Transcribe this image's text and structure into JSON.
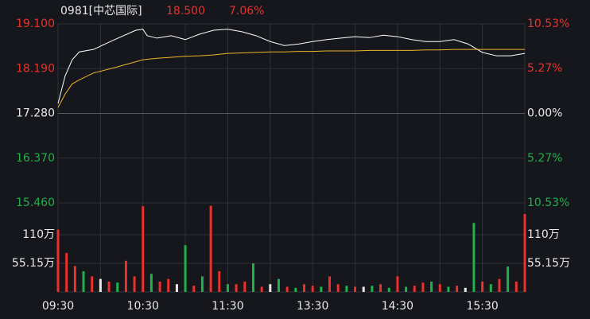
{
  "chart_data": {
    "type": "intraday",
    "title": "0981[中芯国际]",
    "last_price": "18.500",
    "change_pct": "7.06%",
    "x": [
      0,
      5,
      10,
      15,
      25,
      40,
      55,
      60,
      63,
      70,
      80,
      90,
      100,
      110,
      120,
      130,
      140,
      150,
      160,
      170,
      180,
      190,
      200,
      210,
      220,
      230,
      240,
      250,
      260,
      270,
      280,
      290,
      300,
      310,
      320,
      330
    ],
    "series": [
      {
        "name": "price",
        "color": "#ffffff",
        "values": [
          17.48,
          18.04,
          18.37,
          18.53,
          18.58,
          18.78,
          18.97,
          18.99,
          18.86,
          18.81,
          18.86,
          18.78,
          18.89,
          18.97,
          18.99,
          18.94,
          18.86,
          18.74,
          18.66,
          18.69,
          18.74,
          18.78,
          18.81,
          18.84,
          18.82,
          18.87,
          18.84,
          18.78,
          18.74,
          18.74,
          18.78,
          18.69,
          18.52,
          18.45,
          18.45,
          18.5
        ]
      },
      {
        "name": "average",
        "color": "#f0b429",
        "values": [
          17.4,
          17.67,
          17.88,
          17.96,
          18.1,
          18.21,
          18.33,
          18.37,
          18.38,
          18.4,
          18.42,
          18.44,
          18.45,
          18.47,
          18.5,
          18.51,
          18.52,
          18.53,
          18.53,
          18.54,
          18.54,
          18.55,
          18.55,
          18.55,
          18.56,
          18.56,
          18.56,
          18.56,
          18.57,
          18.57,
          18.58,
          18.58,
          18.58,
          18.58,
          18.58,
          18.58
        ]
      }
    ],
    "xlim": [
      0,
      330
    ],
    "xticks": [
      {
        "value": 0,
        "label": "09:30"
      },
      {
        "value": 60,
        "label": "10:30"
      },
      {
        "value": 120,
        "label": "11:30"
      },
      {
        "value": 180,
        "label": "13:30"
      },
      {
        "value": 240,
        "label": "14:30"
      },
      {
        "value": 300,
        "label": "15:30"
      }
    ],
    "x_gridlines": [
      30,
      90,
      150,
      210,
      270
    ],
    "ylim": [
      15.46,
      19.1
    ],
    "yticks": [
      {
        "value": 19.1,
        "label": "19.100"
      },
      {
        "value": 18.19,
        "label": "18.190"
      },
      {
        "value": 17.28,
        "label": "17.280"
      },
      {
        "value": 16.37,
        "label": "16.370"
      },
      {
        "value": 15.46,
        "label": "15.460"
      }
    ],
    "y2lim": [
      -10.53,
      10.53
    ],
    "y2ticks": [
      {
        "value": 10.53,
        "label": "10.53%"
      },
      {
        "value": 5.27,
        "label": "5.27%"
      },
      {
        "value": 0,
        "label": "0.00%"
      },
      {
        "value": -5.27,
        "label": "5.27%"
      },
      {
        "value": -10.53,
        "label": "10.53%"
      }
    ],
    "up_color": "#e8322b",
    "down_color": "#22b04a",
    "flat_color": "#e8e8e8",
    "grid_color": "#2e3138",
    "volume": {
      "x": [
        0,
        6,
        12,
        18,
        24,
        30,
        36,
        42,
        48,
        54,
        60,
        66,
        72,
        78,
        84,
        90,
        96,
        102,
        108,
        114,
        120,
        126,
        132,
        138,
        144,
        150,
        156,
        162,
        168,
        174,
        180,
        186,
        192,
        198,
        204,
        210,
        216,
        222,
        228,
        234,
        240,
        246,
        252,
        258,
        264,
        270,
        276,
        282,
        288,
        294,
        300,
        306,
        312,
        318,
        324,
        330
      ],
      "values": [
        120,
        75,
        50,
        40,
        30,
        25,
        20,
        18,
        60,
        30,
        165,
        35,
        20,
        25,
        15,
        90,
        12,
        30,
        166,
        40,
        15,
        15,
        20,
        55,
        10,
        15,
        25,
        10,
        8,
        15,
        12,
        10,
        30,
        15,
        12,
        10,
        10,
        12,
        15,
        8,
        30,
        10,
        12,
        18,
        20,
        15,
        10,
        12,
        8,
        133,
        20,
        15,
        25,
        49,
        20,
        150
      ],
      "colors": [
        "#e8322b",
        "#e8322b",
        "#e8322b",
        "#22b04a",
        "#e8322b",
        "#e8e8e8",
        "#e8322b",
        "#22b04a",
        "#e8322b",
        "#e8322b",
        "#e8322b",
        "#22b04a",
        "#e8322b",
        "#e8322b",
        "#e8e8e8",
        "#22b04a",
        "#e8322b",
        "#22b04a",
        "#e8322b",
        "#e8322b",
        "#22b04a",
        "#e8322b",
        "#e8322b",
        "#22b04a",
        "#e8322b",
        "#e8e8e8",
        "#22b04a",
        "#e8322b",
        "#22b04a",
        "#e8322b",
        "#e8322b",
        "#22b04a",
        "#e8322b",
        "#e8322b",
        "#22b04a",
        "#e8322b",
        "#e8e8e8",
        "#22b04a",
        "#e8322b",
        "#22b04a",
        "#e8322b",
        "#22b04a",
        "#e8322b",
        "#e8322b",
        "#22b04a",
        "#e8322b",
        "#22b04a",
        "#e8322b",
        "#e8e8e8",
        "#22b04a",
        "#e8322b",
        "#22b04a",
        "#e8322b",
        "#22b04a",
        "#e8322b",
        "#e8322b"
      ],
      "ylim": [
        0,
        170
      ],
      "yticks": [
        {
          "value": 110,
          "label": "110万"
        },
        {
          "value": 55.15,
          "label": "55.15万"
        }
      ]
    }
  }
}
